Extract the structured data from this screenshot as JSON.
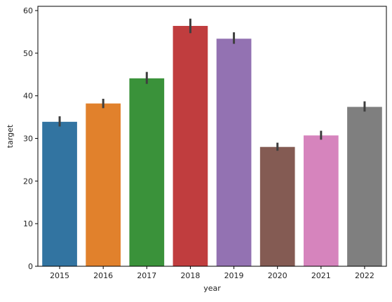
{
  "chart_data": {
    "type": "bar",
    "xlabel": "year",
    "ylabel": "target",
    "ylim": [
      0,
      61
    ],
    "yticks": [
      0,
      10,
      20,
      30,
      40,
      50,
      60
    ],
    "grid": false,
    "categories": [
      "2015",
      "2016",
      "2017",
      "2018",
      "2019",
      "2020",
      "2021",
      "2022"
    ],
    "values": [
      33.9,
      38.2,
      44.1,
      56.4,
      53.4,
      28.0,
      30.7,
      37.4
    ],
    "error": [
      [
        32.8,
        35.2
      ],
      [
        37.1,
        39.3
      ],
      [
        42.8,
        45.6
      ],
      [
        54.7,
        58.1
      ],
      [
        52.2,
        54.9
      ],
      [
        27.1,
        29.0
      ],
      [
        29.7,
        31.8
      ],
      [
        36.3,
        38.7
      ]
    ],
    "colors": [
      "#3274a1",
      "#e1812c",
      "#3a923a",
      "#c03d3e",
      "#9372b2",
      "#845b53",
      "#d684bd",
      "#7f7f7f"
    ],
    "error_color": "#3f3f3f"
  }
}
